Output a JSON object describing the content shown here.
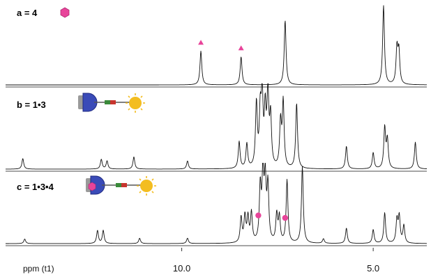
{
  "chart_data": {
    "type": "line",
    "title": "",
    "xlabel": "ppm (t1)",
    "ylabel": "",
    "x_reversed": true,
    "xlim": [
      3.6,
      14.6
    ],
    "x_ticks": [
      {
        "value": 10.0,
        "label": "10.0"
      },
      {
        "value": 5.0,
        "label": "5.0"
      }
    ],
    "grid": false,
    "colors": {
      "trace": "#111111",
      "marker": "#e8449a",
      "baseline": "#6f6f6f"
    },
    "panels": [
      {
        "label": "a = 4",
        "icon": "pink-hexagon-icon",
        "peaks": [
          {
            "ppm": 9.5,
            "height": 0.42
          },
          {
            "ppm": 8.45,
            "height": 0.35
          },
          {
            "ppm": 7.3,
            "height": 0.8
          },
          {
            "ppm": 4.73,
            "height": 0.98
          },
          {
            "ppm": 4.38,
            "height": 0.44
          },
          {
            "ppm": 4.33,
            "height": 0.4
          }
        ],
        "markers": [
          {
            "ppm": 9.5,
            "shape": "triangle"
          },
          {
            "ppm": 8.45,
            "shape": "triangle"
          }
        ]
      },
      {
        "label": "b = 1•3",
        "icon": "rotaxane-assembly-icon",
        "peaks": [
          {
            "ppm": 14.15,
            "height": 0.13
          },
          {
            "ppm": 12.1,
            "height": 0.12
          },
          {
            "ppm": 11.95,
            "height": 0.1
          },
          {
            "ppm": 11.25,
            "height": 0.15
          },
          {
            "ppm": 9.85,
            "height": 0.1
          },
          {
            "ppm": 8.5,
            "height": 0.33
          },
          {
            "ppm": 8.3,
            "height": 0.3
          },
          {
            "ppm": 8.05,
            "height": 0.78
          },
          {
            "ppm": 7.95,
            "height": 0.62
          },
          {
            "ppm": 7.9,
            "height": 0.85
          },
          {
            "ppm": 7.82,
            "height": 0.66
          },
          {
            "ppm": 7.75,
            "height": 0.88
          },
          {
            "ppm": 7.68,
            "height": 0.6
          },
          {
            "ppm": 7.42,
            "height": 0.55
          },
          {
            "ppm": 7.35,
            "height": 0.8
          },
          {
            "ppm": 7.0,
            "height": 0.8
          },
          {
            "ppm": 5.7,
            "height": 0.28
          },
          {
            "ppm": 5.0,
            "height": 0.2
          },
          {
            "ppm": 4.7,
            "height": 0.5
          },
          {
            "ppm": 4.63,
            "height": 0.35
          },
          {
            "ppm": 3.9,
            "height": 0.33
          }
        ],
        "markers": []
      },
      {
        "label": "c = 1•3•4",
        "icon": "rotaxane-complex-icon",
        "peaks": [
          {
            "ppm": 14.1,
            "height": 0.06
          },
          {
            "ppm": 12.2,
            "height": 0.17
          },
          {
            "ppm": 12.05,
            "height": 0.17
          },
          {
            "ppm": 11.1,
            "height": 0.07
          },
          {
            "ppm": 9.85,
            "height": 0.07
          },
          {
            "ppm": 8.45,
            "height": 0.33
          },
          {
            "ppm": 8.35,
            "height": 0.34
          },
          {
            "ppm": 8.27,
            "height": 0.32
          },
          {
            "ppm": 8.18,
            "height": 0.38
          },
          {
            "ppm": 7.95,
            "height": 0.7
          },
          {
            "ppm": 7.88,
            "height": 0.86
          },
          {
            "ppm": 7.82,
            "height": 0.78
          },
          {
            "ppm": 7.75,
            "height": 0.72
          },
          {
            "ppm": 7.52,
            "height": 0.36
          },
          {
            "ppm": 7.45,
            "height": 0.33
          },
          {
            "ppm": 7.25,
            "height": 0.82
          },
          {
            "ppm": 6.85,
            "height": 1.0
          },
          {
            "ppm": 6.3,
            "height": 0.06
          },
          {
            "ppm": 5.7,
            "height": 0.2
          },
          {
            "ppm": 5.0,
            "height": 0.18
          },
          {
            "ppm": 4.7,
            "height": 0.4
          },
          {
            "ppm": 4.38,
            "height": 0.3
          },
          {
            "ppm": 4.32,
            "height": 0.34
          },
          {
            "ppm": 4.2,
            "height": 0.23
          }
        ],
        "markers": [
          {
            "ppm": 8.0,
            "shape": "circle"
          },
          {
            "ppm": 7.3,
            "shape": "circle"
          }
        ]
      }
    ]
  }
}
